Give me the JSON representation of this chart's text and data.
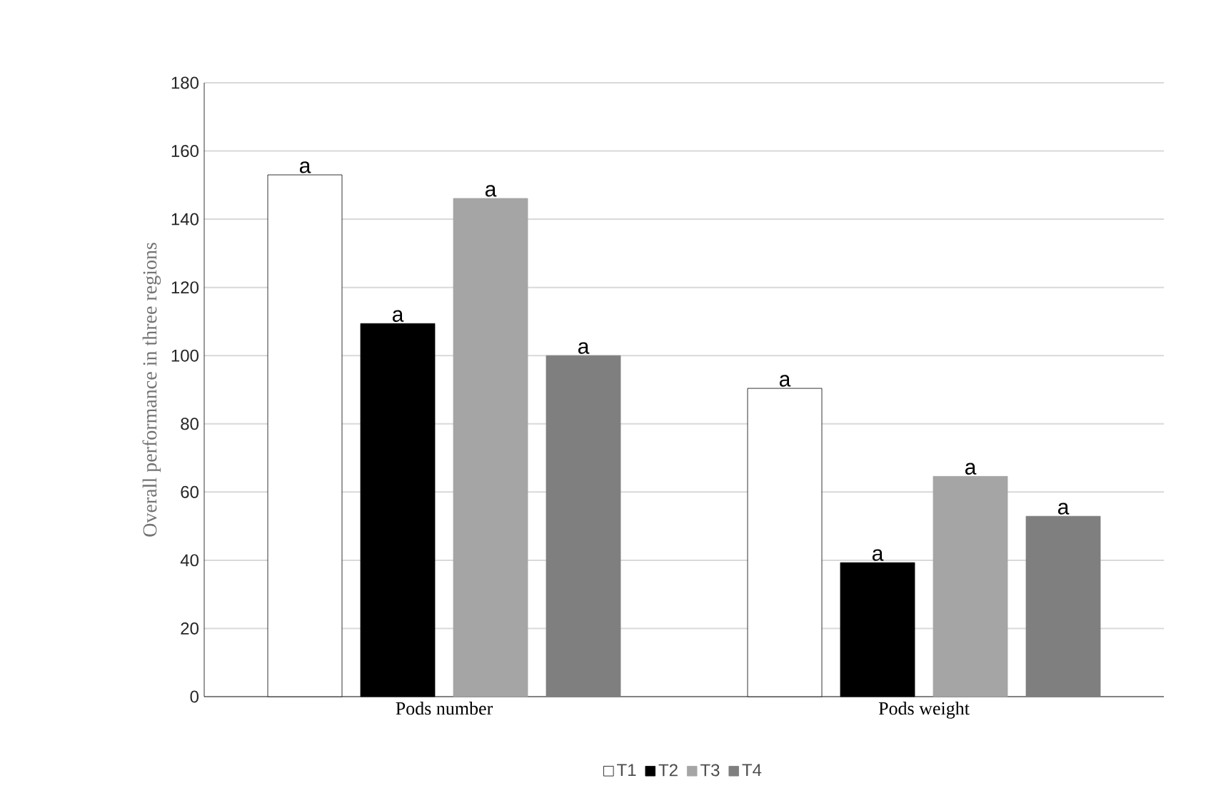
{
  "chart_data": {
    "type": "bar",
    "ylabel": "Overall performance in three regions",
    "categories": [
      "Pods number",
      "Pods weight"
    ],
    "series": [
      {
        "name": "T1",
        "color": "#ffffff",
        "values": [
          153,
          90.4
        ]
      },
      {
        "name": "T2",
        "color": "#000000",
        "values": [
          109.4,
          39.3
        ]
      },
      {
        "name": "T3",
        "color": "#a5a5a5",
        "values": [
          146.1,
          64.6
        ]
      },
      {
        "name": "T4",
        "color": "#7f7f7f",
        "values": [
          100,
          52.9
        ]
      }
    ],
    "annotations": [
      "a",
      "a",
      "a",
      "a",
      "a",
      "a",
      "a",
      "a"
    ],
    "ylim": [
      0,
      180
    ],
    "yticks": [
      0,
      20,
      40,
      60,
      80,
      100,
      120,
      140,
      160,
      180
    ],
    "grid": "y",
    "legend": "bottom"
  }
}
